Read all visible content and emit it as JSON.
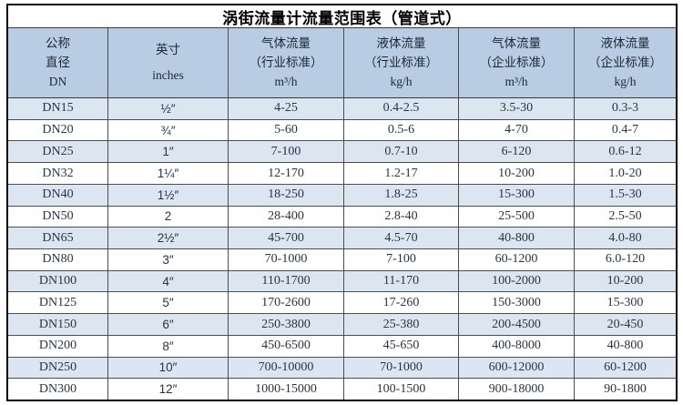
{
  "title": "涡街流量计流量范围表（管道式）",
  "colors": {
    "header_bg": "#b8cce4",
    "stripe_bg": "#dce6f1",
    "row_bg": "#ffffff",
    "border": "#000000",
    "grid_line": "#4d4d4d",
    "text": "#2a3442",
    "title_text": "#000000"
  },
  "table": {
    "columns": [
      {
        "id": "dn",
        "lines": [
          "公称",
          "直径",
          "DN"
        ]
      },
      {
        "id": "inches",
        "lines": [
          "英寸",
          "inches"
        ]
      },
      {
        "id": "gas-industry-standard",
        "lines": [
          "气体流量",
          "（行业标准）",
          "m³/h"
        ]
      },
      {
        "id": "liquid-industry-standard",
        "lines": [
          "液体流量",
          "（行业标准）",
          "kg/h"
        ]
      },
      {
        "id": "gas-enterprise-standard",
        "lines": [
          "气体流量",
          "（企业标准）",
          "m³/h"
        ]
      },
      {
        "id": "liquid-enterprise-standard",
        "lines": [
          "液体流量",
          "（企业标准）",
          "kg/h"
        ]
      }
    ],
    "rows": [
      [
        "DN15",
        "½″",
        "4-25",
        "0.4-2.5",
        "3.5-30",
        "0.3-3"
      ],
      [
        "DN20",
        "¾″",
        "5-60",
        "0.5-6",
        "4-70",
        "0.4-7"
      ],
      [
        "DN25",
        "1″",
        "7-100",
        "0.7-10",
        "6-120",
        "0.6-12"
      ],
      [
        "DN32",
        "1¼″",
        "12-170",
        "1.2-17",
        "10-200",
        "1.0-20"
      ],
      [
        "DN40",
        "1½″",
        "18-250",
        "1.8-25",
        "15-300",
        "1.5-30"
      ],
      [
        "DN50",
        "2",
        "28-400",
        "2.8-40",
        "25-500",
        "2.5-50"
      ],
      [
        "DN65",
        "2½″",
        "45-700",
        "4.5-70",
        "40-800",
        "4.0-80"
      ],
      [
        "DN80",
        "3″",
        "70-1000",
        "7-100",
        "60-1200",
        "6.0-120"
      ],
      [
        "DN100",
        "4″",
        "110-1700",
        "11-170",
        "100-2000",
        "10-200"
      ],
      [
        "DN125",
        "5″",
        "170-2600",
        "17-260",
        "150-3000",
        "15-300"
      ],
      [
        "DN150",
        "6″",
        "250-3800",
        "25-380",
        "200-4500",
        "20-450"
      ],
      [
        "DN200",
        "8″",
        "450-6500",
        "45-650",
        "400-8000",
        "40-800"
      ],
      [
        "DN250",
        "10″",
        "700-10000",
        "70-1000",
        "600-12000",
        "60-1200"
      ],
      [
        "DN300",
        "12″",
        "1000-15000",
        "100-1500",
        "900-18000",
        "90-1800"
      ]
    ]
  }
}
